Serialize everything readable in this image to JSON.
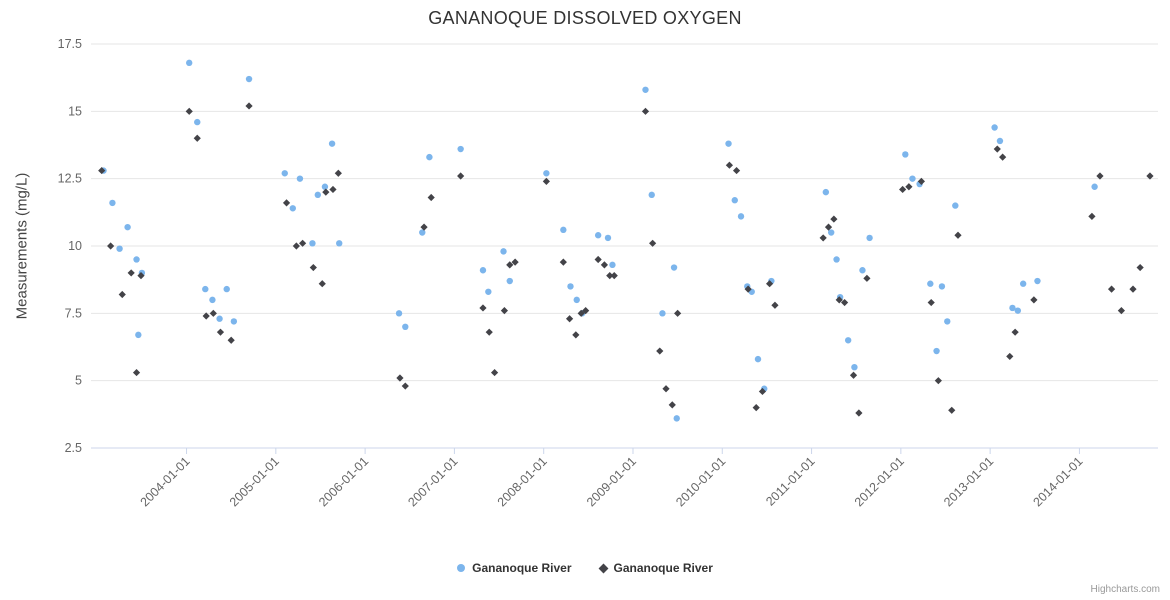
{
  "title": "GANANOQUE DISSOLVED OXYGEN",
  "credits": "Highcharts.com",
  "chart_data": {
    "type": "scatter",
    "title": "GANANOQUE DISSOLVED OXYGEN",
    "xlabel": "",
    "ylabel": "Measurements (mg/L)",
    "ylim": [
      2.5,
      17.5
    ],
    "xlim": [
      2002.93,
      2014.88
    ],
    "y_ticks": [
      2.5,
      5,
      7.5,
      10,
      12.5,
      15,
      17.5
    ],
    "y_tick_labels": [
      "2.5",
      "5",
      "7.5",
      "10",
      "12.5",
      "15",
      "17.5"
    ],
    "x_ticks": [
      "2004-01-01",
      "2005-01-01",
      "2006-01-01",
      "2007-01-01",
      "2008-01-01",
      "2009-01-01",
      "2010-01-01",
      "2011-01-01",
      "2012-01-01",
      "2013-01-01",
      "2014-01-01"
    ],
    "x_tick_years": [
      2004,
      2005,
      2006,
      2007,
      2008,
      2009,
      2010,
      2011,
      2012,
      2013,
      2014
    ],
    "grid": "horizontal",
    "legend_position": "bottom-center",
    "colors": {
      "series1": "#7CB5EC",
      "series2": "#434348",
      "gridline": "#e6e6e6",
      "axis_line": "#ccd6eb",
      "label": "#666666"
    },
    "series": [
      {
        "name": "Gananoque River",
        "marker": "circle",
        "color": "#7CB5EC",
        "points": [
          [
            2003.07,
            12.8
          ],
          [
            2003.17,
            11.6
          ],
          [
            2003.25,
            9.9
          ],
          [
            2003.34,
            10.7
          ],
          [
            2003.44,
            9.5
          ],
          [
            2003.5,
            9.0
          ],
          [
            2003.46,
            6.7
          ],
          [
            2004.03,
            16.8
          ],
          [
            2004.12,
            14.6
          ],
          [
            2004.21,
            8.4
          ],
          [
            2004.29,
            8.0
          ],
          [
            2004.37,
            7.3
          ],
          [
            2004.45,
            8.4
          ],
          [
            2004.53,
            7.2
          ],
          [
            2004.7,
            16.2
          ],
          [
            2005.1,
            12.7
          ],
          [
            2005.19,
            11.4
          ],
          [
            2005.27,
            12.5
          ],
          [
            2005.41,
            10.1
          ],
          [
            2005.47,
            11.9
          ],
          [
            2005.55,
            12.2
          ],
          [
            2005.63,
            13.8
          ],
          [
            2005.71,
            10.1
          ],
          [
            2006.38,
            7.5
          ],
          [
            2006.45,
            7.0
          ],
          [
            2006.64,
            10.5
          ],
          [
            2006.72,
            13.3
          ],
          [
            2007.07,
            13.6
          ],
          [
            2007.32,
            9.1
          ],
          [
            2007.38,
            8.3
          ],
          [
            2007.55,
            9.8
          ],
          [
            2007.62,
            8.7
          ],
          [
            2008.03,
            12.7
          ],
          [
            2008.22,
            10.6
          ],
          [
            2008.3,
            8.5
          ],
          [
            2008.37,
            8.0
          ],
          [
            2008.43,
            7.5
          ],
          [
            2008.61,
            10.4
          ],
          [
            2008.72,
            10.3
          ],
          [
            2008.77,
            9.3
          ],
          [
            2009.14,
            15.8
          ],
          [
            2009.21,
            11.9
          ],
          [
            2009.33,
            7.5
          ],
          [
            2009.46,
            9.2
          ],
          [
            2009.49,
            3.6
          ],
          [
            2010.07,
            13.8
          ],
          [
            2010.14,
            11.7
          ],
          [
            2010.21,
            11.1
          ],
          [
            2010.28,
            8.5
          ],
          [
            2010.33,
            8.3
          ],
          [
            2010.4,
            5.8
          ],
          [
            2010.47,
            4.7
          ],
          [
            2010.55,
            8.7
          ],
          [
            2011.16,
            12.0
          ],
          [
            2011.22,
            10.5
          ],
          [
            2011.28,
            9.5
          ],
          [
            2011.32,
            8.1
          ],
          [
            2011.41,
            6.5
          ],
          [
            2011.48,
            5.5
          ],
          [
            2011.57,
            9.1
          ],
          [
            2011.65,
            10.3
          ],
          [
            2012.05,
            13.4
          ],
          [
            2012.13,
            12.5
          ],
          [
            2012.21,
            12.3
          ],
          [
            2012.33,
            8.6
          ],
          [
            2012.4,
            6.1
          ],
          [
            2012.46,
            8.5
          ],
          [
            2012.52,
            7.2
          ],
          [
            2012.61,
            11.5
          ],
          [
            2013.05,
            14.4
          ],
          [
            2013.11,
            13.9
          ],
          [
            2013.25,
            7.7
          ],
          [
            2013.31,
            7.6
          ],
          [
            2013.37,
            8.6
          ],
          [
            2013.53,
            8.7
          ],
          [
            2014.17,
            12.2
          ]
        ]
      },
      {
        "name": "Gananoque River",
        "marker": "diamond",
        "color": "#434348",
        "points": [
          [
            2003.05,
            12.8
          ],
          [
            2003.15,
            10.0
          ],
          [
            2003.28,
            8.2
          ],
          [
            2003.38,
            9.0
          ],
          [
            2003.49,
            8.9
          ],
          [
            2003.44,
            5.3
          ],
          [
            2004.03,
            15.0
          ],
          [
            2004.12,
            14.0
          ],
          [
            2004.22,
            7.4
          ],
          [
            2004.3,
            7.5
          ],
          [
            2004.38,
            6.8
          ],
          [
            2004.5,
            6.5
          ],
          [
            2004.7,
            15.2
          ],
          [
            2005.12,
            11.6
          ],
          [
            2005.23,
            10.0
          ],
          [
            2005.3,
            10.1
          ],
          [
            2005.42,
            9.2
          ],
          [
            2005.52,
            8.6
          ],
          [
            2005.56,
            12.0
          ],
          [
            2005.64,
            12.1
          ],
          [
            2005.7,
            12.7
          ],
          [
            2006.39,
            5.1
          ],
          [
            2006.45,
            4.8
          ],
          [
            2006.66,
            10.7
          ],
          [
            2006.74,
            11.8
          ],
          [
            2007.07,
            12.6
          ],
          [
            2007.32,
            7.7
          ],
          [
            2007.39,
            6.8
          ],
          [
            2007.45,
            5.3
          ],
          [
            2007.56,
            7.6
          ],
          [
            2007.62,
            9.3
          ],
          [
            2007.68,
            9.4
          ],
          [
            2008.03,
            12.4
          ],
          [
            2008.22,
            9.4
          ],
          [
            2008.29,
            7.3
          ],
          [
            2008.36,
            6.7
          ],
          [
            2008.42,
            7.5
          ],
          [
            2008.47,
            7.6
          ],
          [
            2008.61,
            9.5
          ],
          [
            2008.68,
            9.3
          ],
          [
            2008.74,
            8.9
          ],
          [
            2008.79,
            8.9
          ],
          [
            2009.14,
            15.0
          ],
          [
            2009.22,
            10.1
          ],
          [
            2009.3,
            6.1
          ],
          [
            2009.37,
            4.7
          ],
          [
            2009.44,
            4.1
          ],
          [
            2009.5,
            7.5
          ],
          [
            2010.08,
            13.0
          ],
          [
            2010.16,
            12.8
          ],
          [
            2010.29,
            8.4
          ],
          [
            2010.38,
            4.0
          ],
          [
            2010.45,
            4.6
          ],
          [
            2010.53,
            8.6
          ],
          [
            2010.59,
            7.8
          ],
          [
            2011.13,
            10.3
          ],
          [
            2011.19,
            10.7
          ],
          [
            2011.25,
            11.0
          ],
          [
            2011.31,
            8.0
          ],
          [
            2011.37,
            7.9
          ],
          [
            2011.47,
            5.2
          ],
          [
            2011.53,
            3.8
          ],
          [
            2011.62,
            8.8
          ],
          [
            2012.02,
            12.1
          ],
          [
            2012.09,
            12.2
          ],
          [
            2012.23,
            12.4
          ],
          [
            2012.34,
            7.9
          ],
          [
            2012.42,
            5.0
          ],
          [
            2012.57,
            3.9
          ],
          [
            2012.64,
            10.4
          ],
          [
            2013.08,
            13.6
          ],
          [
            2013.14,
            13.3
          ],
          [
            2013.22,
            5.9
          ],
          [
            2013.28,
            6.8
          ],
          [
            2013.49,
            8.0
          ],
          [
            2014.14,
            11.1
          ],
          [
            2014.23,
            12.6
          ],
          [
            2014.36,
            8.4
          ],
          [
            2014.47,
            7.6
          ],
          [
            2014.6,
            8.4
          ],
          [
            2014.68,
            9.2
          ],
          [
            2014.79,
            12.6
          ]
        ]
      }
    ]
  }
}
